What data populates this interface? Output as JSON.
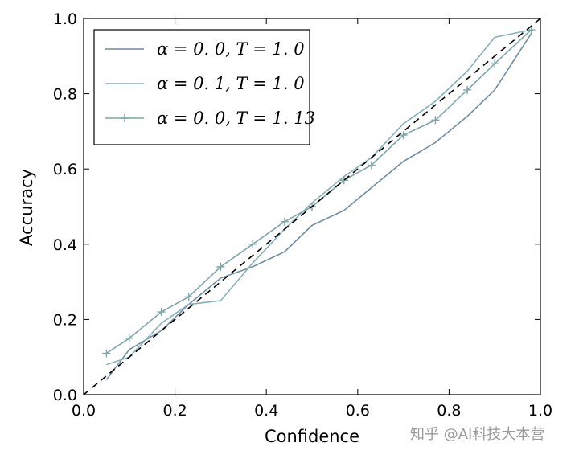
{
  "chart_data": {
    "type": "line",
    "title": "",
    "xlabel": "Confidence",
    "ylabel": "Accuracy",
    "xlim": [
      0.0,
      1.0
    ],
    "ylim": [
      0.0,
      1.0
    ],
    "xticks": [
      "0.0",
      "0.2",
      "0.4",
      "0.6",
      "0.8",
      "1.0"
    ],
    "yticks": [
      "0.0",
      "0.2",
      "0.4",
      "0.6",
      "0.8",
      "1.0"
    ],
    "grid": false,
    "legend_position": "top-left",
    "reference_line": {
      "style": "dashed",
      "color": "#000000",
      "x": [
        0.0,
        1.0
      ],
      "y": [
        0.0,
        1.0
      ]
    },
    "series": [
      {
        "name": "α = 0.0, T = 1.0",
        "color": "#6f8ca3",
        "marker": "none",
        "x": [
          0.05,
          0.1,
          0.17,
          0.23,
          0.3,
          0.37,
          0.44,
          0.5,
          0.57,
          0.63,
          0.7,
          0.77,
          0.84,
          0.9,
          0.98
        ],
        "y": [
          0.04,
          0.12,
          0.17,
          0.24,
          0.31,
          0.34,
          0.38,
          0.45,
          0.49,
          0.55,
          0.62,
          0.67,
          0.74,
          0.81,
          0.96
        ]
      },
      {
        "name": "α = 0.1, T = 1.0",
        "color": "#86b0b8",
        "marker": "none",
        "x": [
          0.05,
          0.1,
          0.17,
          0.23,
          0.3,
          0.37,
          0.44,
          0.5,
          0.57,
          0.63,
          0.7,
          0.77,
          0.84,
          0.9,
          0.98
        ],
        "y": [
          0.08,
          0.1,
          0.19,
          0.24,
          0.25,
          0.35,
          0.44,
          0.51,
          0.58,
          0.63,
          0.72,
          0.78,
          0.86,
          0.95,
          0.97
        ]
      },
      {
        "name": "α = 0.0, T = 1.13",
        "color": "#7fa6a8",
        "marker": "plus",
        "x": [
          0.05,
          0.1,
          0.17,
          0.23,
          0.3,
          0.37,
          0.44,
          0.5,
          0.57,
          0.63,
          0.7,
          0.77,
          0.84,
          0.9,
          0.98
        ],
        "y": [
          0.11,
          0.15,
          0.22,
          0.26,
          0.34,
          0.4,
          0.46,
          0.5,
          0.57,
          0.61,
          0.69,
          0.73,
          0.81,
          0.88,
          0.97
        ]
      }
    ],
    "legend_labels": [
      "α = 0. 0, T = 1. 0",
      "α = 0. 1, T = 1. 0",
      "α = 0. 0, T = 1. 13"
    ]
  },
  "watermark": "知乎 @AI科技大本营"
}
